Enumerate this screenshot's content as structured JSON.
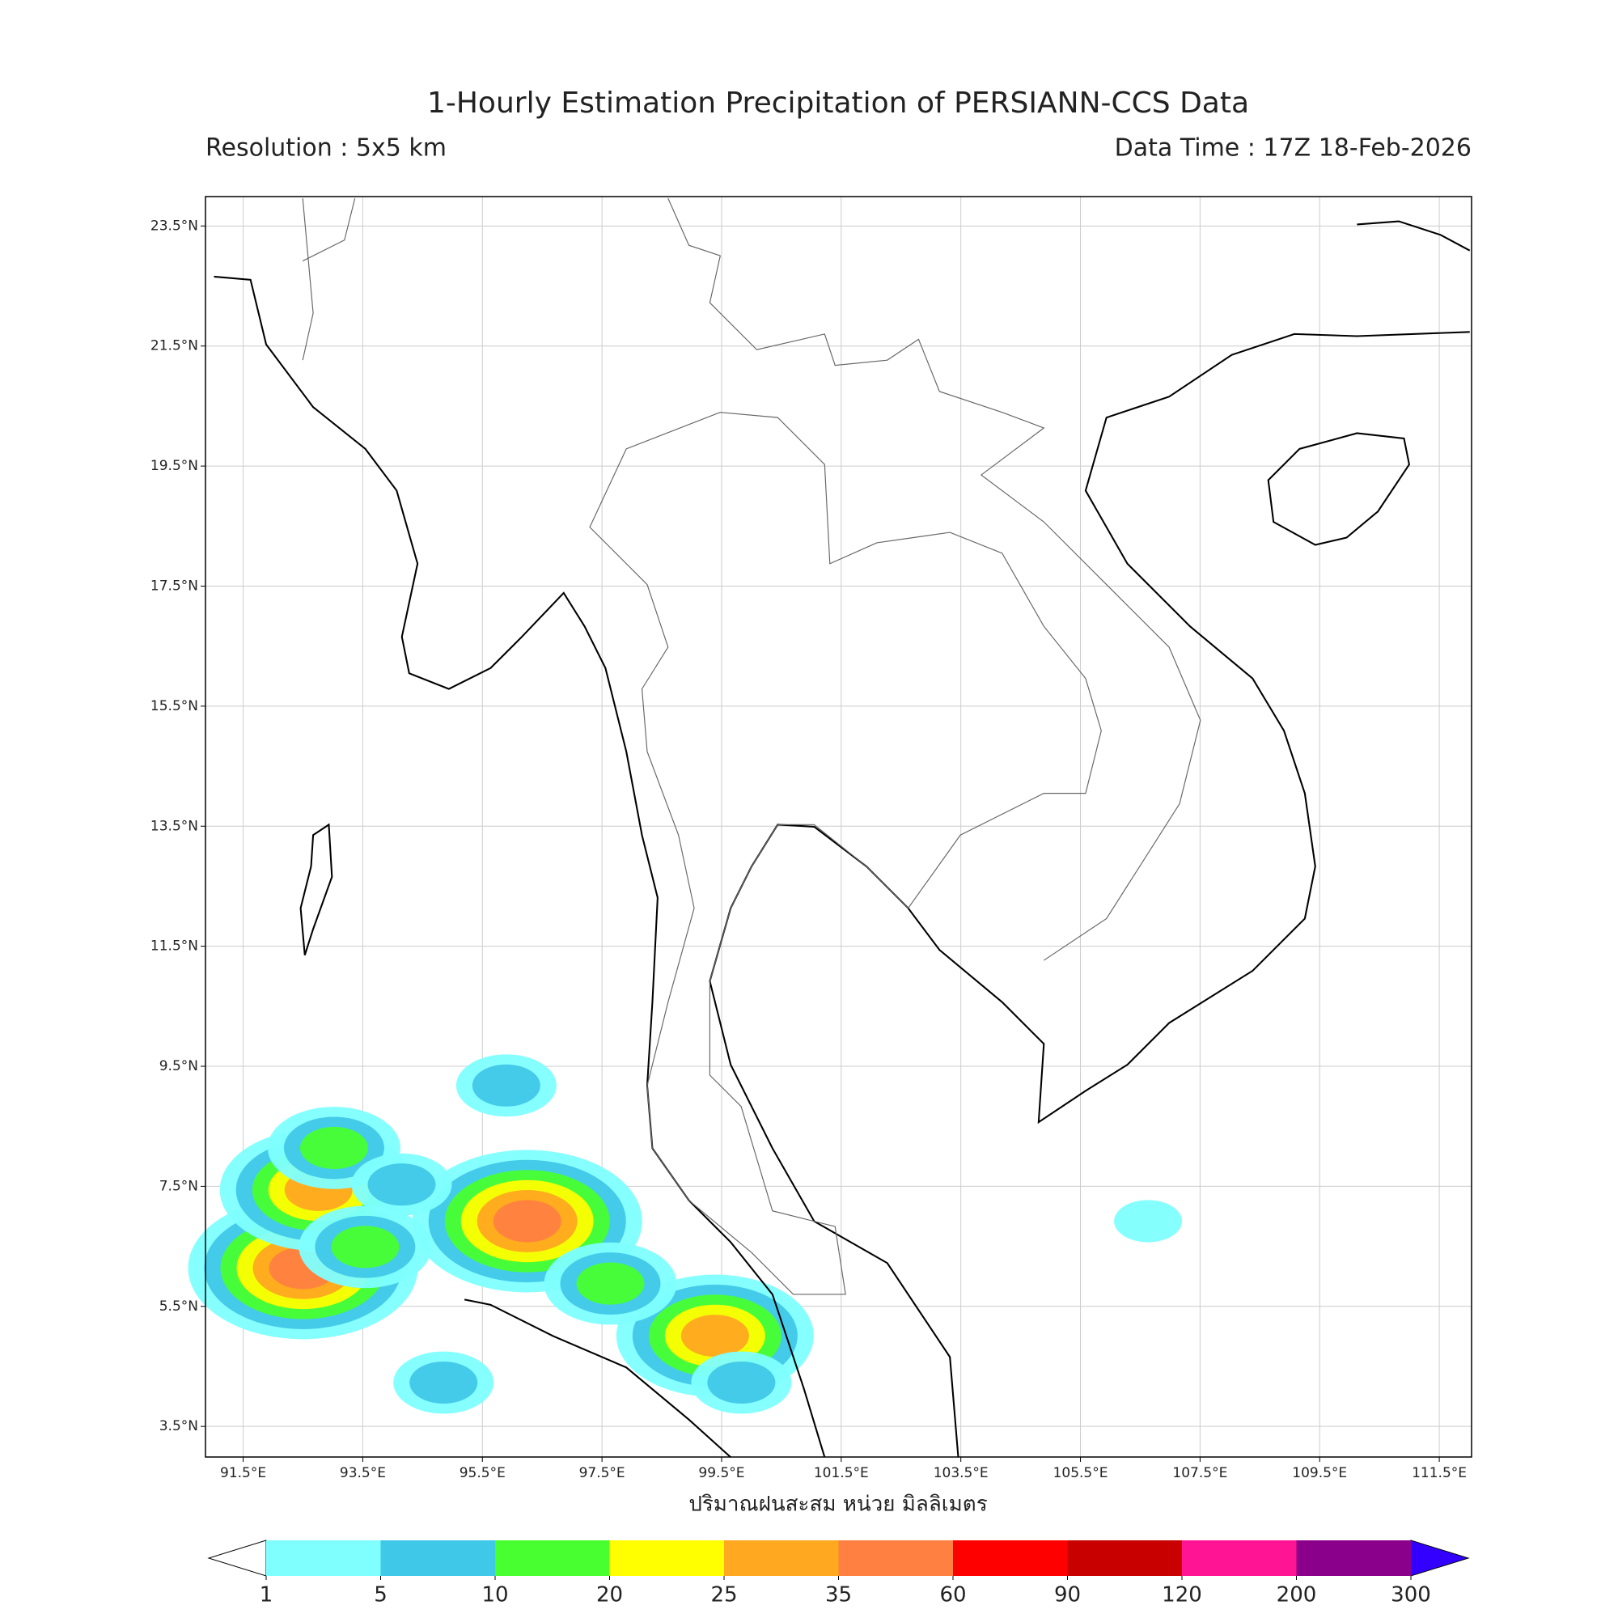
{
  "chart_data": {
    "type": "map",
    "title": "1-Hourly Estimation Precipitation of PERSIANN-CCS Data",
    "subtitle_left": "Resolution : 5x5 km",
    "subtitle_right": "Data Time : 17Z 18-Feb-2026",
    "xlabel": "ปริมาณฝนสะสม หน่วย มิลลิเมตร",
    "xlim": [
      90.87,
      112.04
    ],
    "ylim": [
      2.99,
      23.99
    ],
    "grid": true,
    "xticks": [
      {
        "value": 91.5,
        "label": "91.5°E"
      },
      {
        "value": 93.5,
        "label": "93.5°E"
      },
      {
        "value": 95.5,
        "label": "95.5°E"
      },
      {
        "value": 97.5,
        "label": "97.5°E"
      },
      {
        "value": 99.5,
        "label": "99.5°E"
      },
      {
        "value": 101.5,
        "label": "101.5°E"
      },
      {
        "value": 103.5,
        "label": "103.5°E"
      },
      {
        "value": 105.5,
        "label": "105.5°E"
      },
      {
        "value": 107.5,
        "label": "107.5°E"
      },
      {
        "value": 109.5,
        "label": "109.5°E"
      },
      {
        "value": 111.5,
        "label": "111.5°E"
      }
    ],
    "yticks": [
      {
        "value": 3.5,
        "label": "3.5°N"
      },
      {
        "value": 5.5,
        "label": "5.5°N"
      },
      {
        "value": 7.5,
        "label": "7.5°N"
      },
      {
        "value": 9.5,
        "label": "9.5°N"
      },
      {
        "value": 11.5,
        "label": "11.5°N"
      },
      {
        "value": 13.5,
        "label": "13.5°N"
      },
      {
        "value": 15.5,
        "label": "15.5°N"
      },
      {
        "value": 17.5,
        "label": "17.5°N"
      },
      {
        "value": 19.5,
        "label": "19.5°N"
      },
      {
        "value": 21.5,
        "label": "21.5°N"
      },
      {
        "value": 23.5,
        "label": "23.5°N"
      }
    ],
    "cells": [
      {
        "lon": 99.39,
        "lat": 5.01,
        "value": 30
      },
      {
        "lon": 92.5,
        "lat": 6.14,
        "value": 35
      },
      {
        "lon": 96.25,
        "lat": 6.92,
        "value": 35
      },
      {
        "lon": 92.76,
        "lat": 7.44,
        "value": 30
      },
      {
        "lon": 97.64,
        "lat": 5.88,
        "value": 15
      },
      {
        "lon": 93.02,
        "lat": 8.14,
        "value": 12
      },
      {
        "lon": 95.9,
        "lat": 9.18,
        "value": 8
      },
      {
        "lon": 94.15,
        "lat": 7.53,
        "value": 8
      },
      {
        "lon": 93.54,
        "lat": 6.49,
        "value": 12
      },
      {
        "lon": 94.85,
        "lat": 4.23,
        "value": 8
      },
      {
        "lon": 106.63,
        "lat": 6.92,
        "value": 3
      },
      {
        "lon": 99.83,
        "lat": 4.23,
        "value": 8
      }
    ],
    "colorbar": {
      "bounds": [
        1,
        5,
        10,
        20,
        25,
        35,
        60,
        90,
        120,
        200,
        300
      ],
      "colors": [
        "#80ffff",
        "#40c8e8",
        "#48ff30",
        "#ffff00",
        "#ffa820",
        "#ff8040",
        "#ff0000",
        "#c80000",
        "#ff1493",
        "#8b008b"
      ],
      "under_color": "#ffffff",
      "over_color": "#3300ff"
    }
  }
}
